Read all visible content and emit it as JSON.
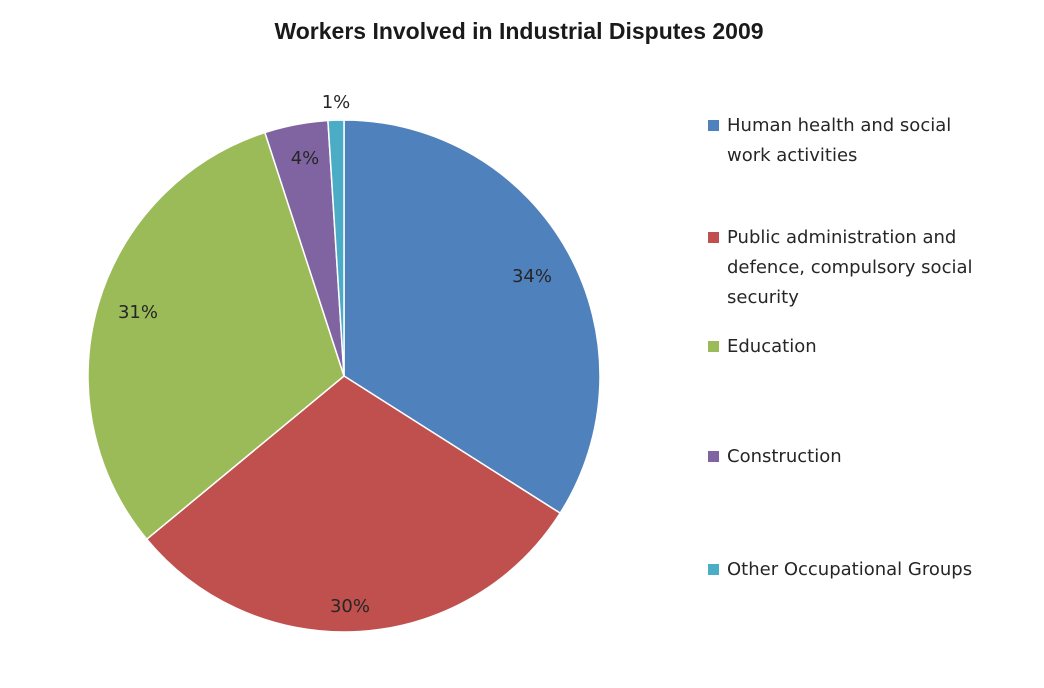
{
  "chart_data": {
    "type": "pie",
    "title": "Workers Involved in Industrial Disputes 2009",
    "slices": [
      {
        "name": "Human health and social work activities",
        "legend_lines": [
          "Human health and social",
          "work activities"
        ],
        "value": 34,
        "label": "34%",
        "color": "#4f81bd"
      },
      {
        "name": "Public administration and defence, compulsory social security",
        "legend_lines": [
          "Public administration  and",
          "defence, compulsory social",
          "security"
        ],
        "value": 30,
        "label": "30%",
        "color": "#c0504d"
      },
      {
        "name": "Education",
        "legend_lines": [
          "Education"
        ],
        "value": 31,
        "label": "31%",
        "color": "#9bbb59"
      },
      {
        "name": "Construction",
        "legend_lines": [
          "Construction"
        ],
        "value": 4,
        "label": "4%",
        "color": "#8064a2"
      },
      {
        "name": "Other Occupational Groups",
        "legend_lines": [
          "Other Occupational Groups"
        ],
        "value": 1,
        "label": "1%",
        "color": "#4bacc6"
      }
    ],
    "legend_position": "right",
    "start_angle_deg": 0,
    "direction": "clockwise"
  }
}
